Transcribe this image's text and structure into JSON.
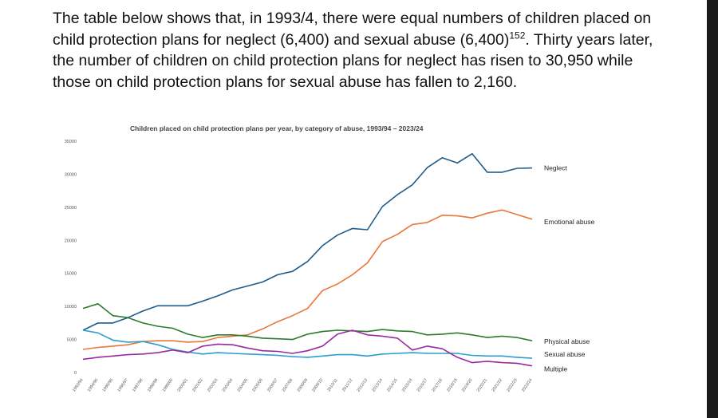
{
  "intro": {
    "text": "The table below shows that, in 1993/4, there were equal numbers of children placed on child protection plans for neglect (6,400) and sexual abuse (6,400)",
    "footnote": "152",
    "text_after": ". Thirty years later, the number of children on child protection plans for neglect has risen to 30,950 while those on child protection plans for sexual abuse has fallen to 2,160."
  },
  "chart_data": {
    "type": "line",
    "title": "Children placed on child protection plans per year, by category of abuse, 1993/94   – 2023/24",
    "xlabel": "",
    "ylabel": "",
    "ylim": [
      0,
      35000
    ],
    "yticks": [
      0,
      5000,
      10000,
      15000,
      20000,
      25000,
      30000,
      35000
    ],
    "grid": false,
    "legend": "right, labels at line ends",
    "categories": [
      "1993/94",
      "1994/95",
      "1995/96",
      "1996/97",
      "1997/98",
      "1998/99",
      "1999/00",
      "2000/01",
      "2001/02",
      "2002/03",
      "2003/04",
      "2004/05",
      "2005/06",
      "2006/07",
      "2007/08",
      "2008/09",
      "2009/10",
      "2010/11",
      "2011/12",
      "2012/13",
      "2013/14",
      "2014/15",
      "2015/16",
      "2016/17",
      "2017/18",
      "2018/19",
      "2019/20",
      "2020/21",
      "2021/22",
      "2022/23",
      "2023/24"
    ],
    "series": [
      {
        "name": "Neglect",
        "color": "#1f5c8c",
        "values": [
          6400,
          7500,
          7500,
          8300,
          9300,
          10100,
          10100,
          10100,
          10800,
          11600,
          12500,
          13100,
          13700,
          14800,
          15300,
          16800,
          19200,
          20800,
          21800,
          21600,
          25100,
          26900,
          28400,
          31000,
          32500,
          31700,
          33100,
          30300,
          30300,
          30900,
          30950
        ]
      },
      {
        "name": "Emotional abuse",
        "color": "#e8783a",
        "values": [
          3500,
          3800,
          4000,
          4200,
          4700,
          4800,
          4800,
          4600,
          4700,
          5300,
          5500,
          5700,
          6600,
          7700,
          8600,
          9700,
          12400,
          13400,
          14800,
          16600,
          19800,
          20900,
          22400,
          22700,
          23800,
          23700,
          23400,
          24100,
          24600,
          23900,
          23200
        ]
      },
      {
        "name": "Physical abuse",
        "color": "#2e7a2e",
        "values": [
          9700,
          10400,
          8600,
          8300,
          7500,
          7000,
          6700,
          5800,
          5300,
          5700,
          5700,
          5500,
          5200,
          5100,
          5000,
          5800,
          6200,
          6400,
          6300,
          6200,
          6500,
          6300,
          6200,
          5700,
          5800,
          6000,
          5700,
          5300,
          5500,
          5300,
          4800
        ]
      },
      {
        "name": "Sexual abuse",
        "color": "#2a9fd0",
        "values": [
          6400,
          6000,
          4900,
          4600,
          4700,
          4200,
          3500,
          3100,
          2800,
          3000,
          2900,
          2800,
          2700,
          2600,
          2400,
          2300,
          2500,
          2700,
          2700,
          2500,
          2800,
          2900,
          3000,
          2900,
          2900,
          2900,
          2600,
          2500,
          2500,
          2300,
          2160
        ]
      },
      {
        "name": "Multiple",
        "color": "#9b2aa0",
        "values": [
          2000,
          2300,
          2500,
          2700,
          2800,
          3000,
          3400,
          3000,
          4000,
          4300,
          4200,
          3700,
          3300,
          3200,
          2900,
          3300,
          4000,
          5800,
          6400,
          5700,
          5500,
          5200,
          3400,
          4000,
          3600,
          2300,
          1500,
          1700,
          1500,
          1400,
          1000
        ]
      }
    ]
  }
}
